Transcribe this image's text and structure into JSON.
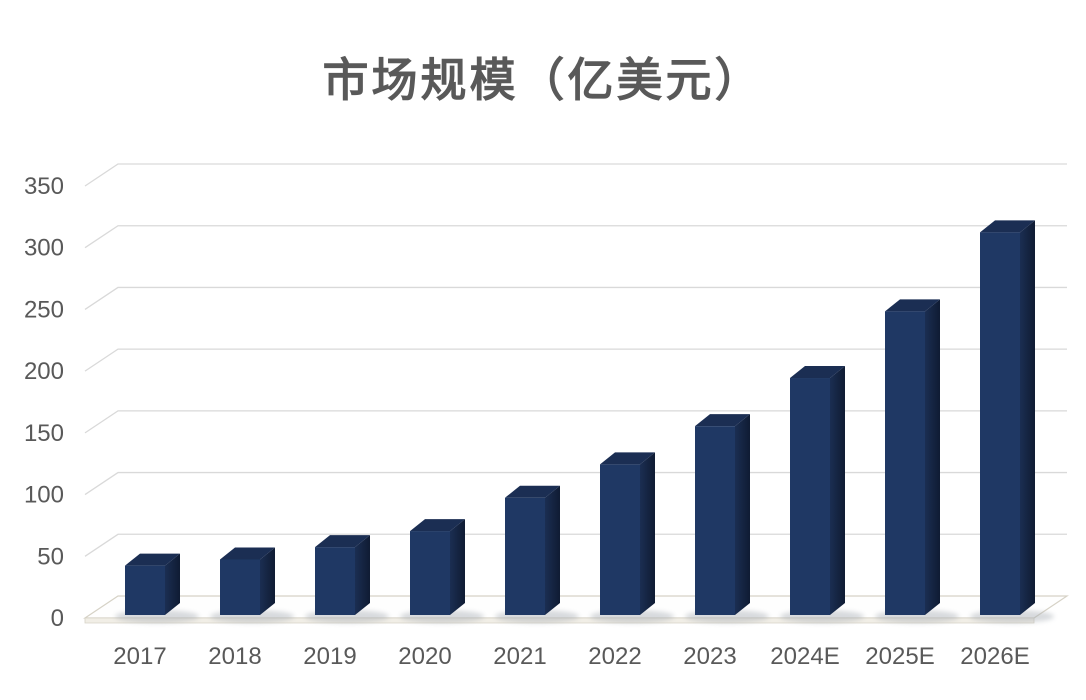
{
  "chart_data": {
    "type": "bar",
    "style": "3d-column",
    "title": "市场规模（亿美元）",
    "categories": [
      "2017",
      "2018",
      "2019",
      "2020",
      "2021",
      "2022",
      "2023",
      "2024E",
      "2025E",
      "2026E"
    ],
    "values": [
      40,
      45,
      55,
      68,
      95,
      122,
      153,
      192,
      246,
      310
    ],
    "xlabel": "",
    "ylabel": "",
    "ylim": [
      0,
      350
    ],
    "ytick_step": 50,
    "y_tick_labels": [
      "0",
      "50",
      "100",
      "150",
      "200",
      "250",
      "300",
      "350"
    ],
    "grid": true,
    "legend": "none",
    "colors": {
      "bar_front": "#1F3864",
      "bar_top": "#1B2E53",
      "bar_side_light": "#1B2E52",
      "bar_side_dark": "#0F1B33",
      "gridline": "#D9D9D9",
      "floor_fill": "#FEFEFE",
      "floor_edge": "#D6D2C6",
      "floor_band": "#F1EEE6",
      "shadow": "#A8AEB5",
      "text": "#595959",
      "background": "#FFFFFF"
    }
  }
}
